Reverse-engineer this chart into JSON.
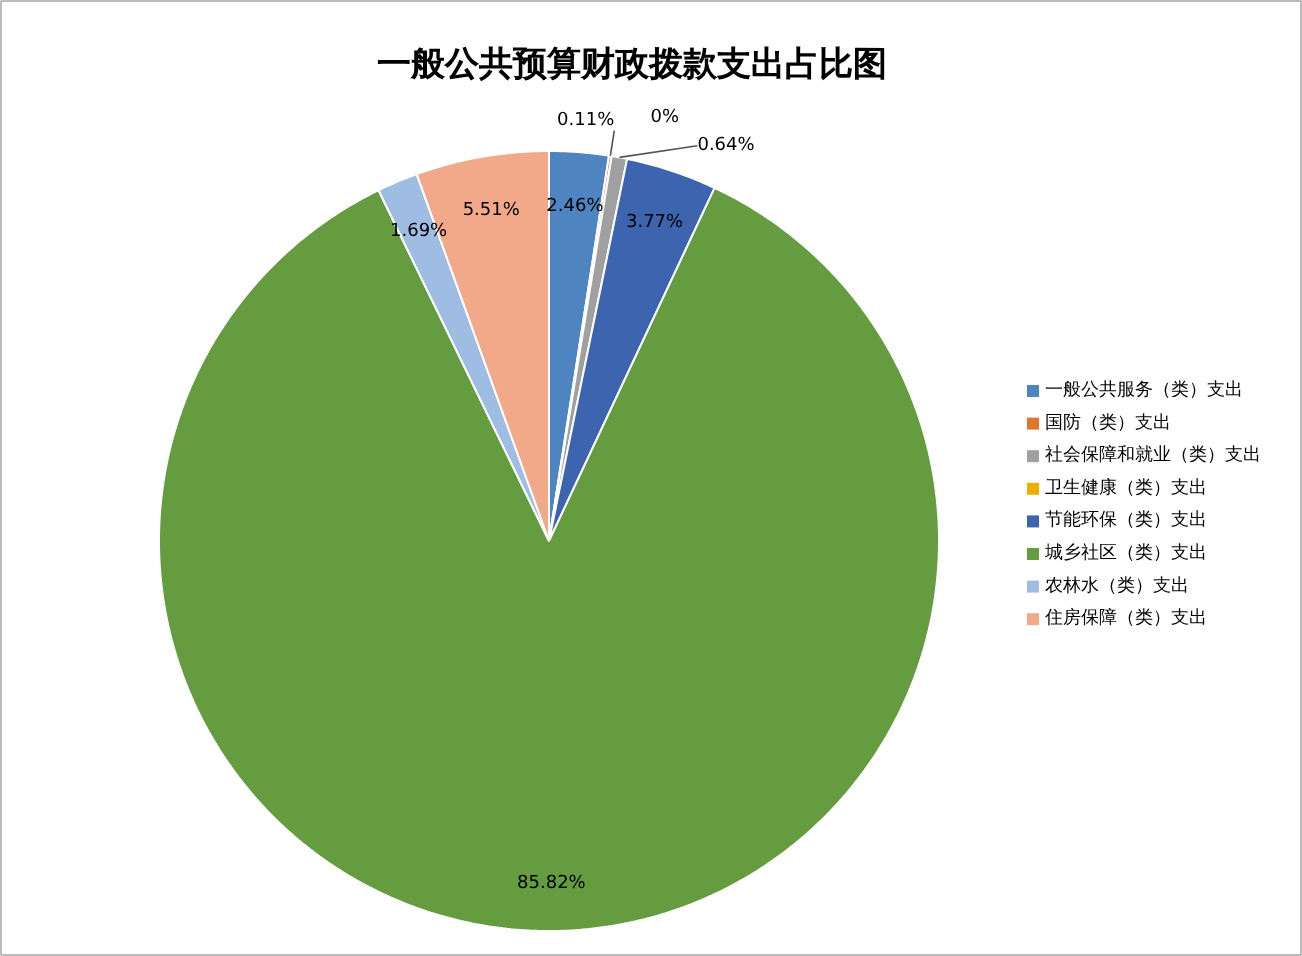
{
  "chart_data": {
    "type": "pie",
    "title": "一般公共预算财政拨款支出占比图",
    "categories": [
      "一般公共服务（类）支出",
      "国防（类）支出",
      "社会保障和就业（类）支出",
      "卫生健康（类）支出",
      "节能环保（类）支出",
      "城乡社区（类）支出",
      "农林水（类）支出",
      "住房保障（类）支出"
    ],
    "values": [
      2.46,
      0.11,
      0.64,
      0,
      3.77,
      85.82,
      1.69,
      5.51
    ],
    "colors": [
      "#4e85c0",
      "#e0752e",
      "#a0a0a0",
      "#ecb100",
      "#3d64ae",
      "#659c3f",
      "#9fbde2",
      "#f1a98a"
    ],
    "value_labels": [
      "2.46%",
      "0.11%",
      "0.64%",
      "0%",
      "3.77%",
      "85.82%",
      "1.69%",
      "5.51%"
    ],
    "legend": "right"
  }
}
